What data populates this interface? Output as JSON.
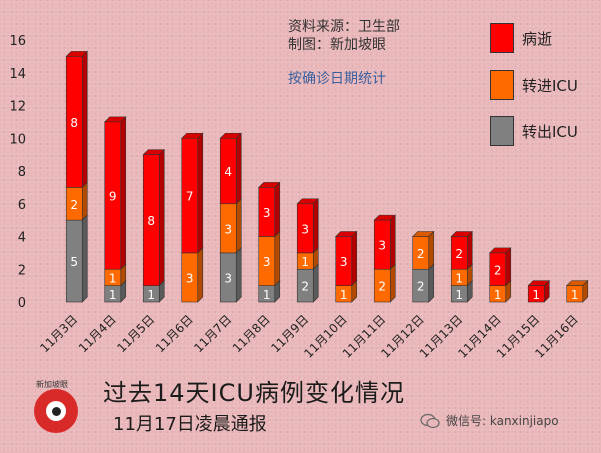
{
  "notes": {
    "source": "资料来源：卫生部",
    "maker": "制图：新加坡眼",
    "method": "按确诊日期统计"
  },
  "legend": [
    {
      "label": "病逝",
      "color": "#ff0000"
    },
    {
      "label": "转进ICU",
      "color": "#ff6a00"
    },
    {
      "label": "转出ICU",
      "color": "#808080"
    }
  ],
  "footer": {
    "title": "过去14天ICU病例变化情况",
    "subtitle": "11月17日凌晨通报",
    "logo_text": "新加坡眼",
    "wechat": "微信号: kanxinjiapo"
  },
  "colors": {
    "deaths": "#ff0000",
    "to_icu": "#ff6a00",
    "from_icu": "#808080"
  },
  "chart_data": {
    "type": "bar",
    "stacked": true,
    "categories": [
      "11月3日",
      "11月4日",
      "11月5日",
      "11月6日",
      "11月7日",
      "11月8日",
      "11月9日",
      "11月10日",
      "11月11日",
      "11月12日",
      "11月13日",
      "11月14日",
      "11月15日",
      "11月16日"
    ],
    "series": [
      {
        "name": "转出ICU",
        "values": [
          5,
          1,
          1,
          0,
          3,
          1,
          2,
          0,
          0,
          2,
          1,
          0,
          0,
          0
        ]
      },
      {
        "name": "转进ICU",
        "values": [
          2,
          1,
          0,
          3,
          3,
          3,
          1,
          1,
          2,
          2,
          1,
          1,
          0,
          1
        ]
      },
      {
        "name": "病逝",
        "values": [
          8,
          9,
          8,
          7,
          4,
          3,
          3,
          3,
          3,
          0,
          2,
          2,
          1,
          0
        ]
      }
    ],
    "ylim": [
      0,
      16
    ],
    "yticks": [
      0,
      2,
      4,
      6,
      8,
      10,
      12,
      14,
      16
    ],
    "grid": false,
    "legend": "right"
  }
}
